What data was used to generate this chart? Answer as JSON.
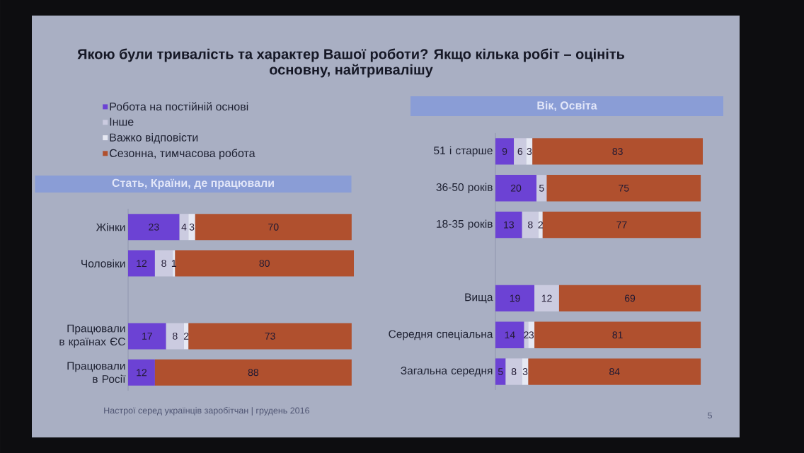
{
  "chart_data": [
    {
      "type": "bar",
      "orientation": "horizontal",
      "stacked": true,
      "title": "Якою були тривалість та характер Вашої роботи? Якщо кілька робіт – оцініть основну, найтривалішу",
      "subtitle": "Стать, Країни, де працювали",
      "categories": [
        "Жінки",
        "Чоловіки",
        null,
        "Працювали в країнах ЄС",
        "Працювали в Росії"
      ],
      "series": [
        {
          "name": "Робота на постійній основі",
          "color": "#6c42d4",
          "values": [
            23,
            12,
            null,
            17,
            12
          ]
        },
        {
          "name": "Інше",
          "color": "#cbcbe0",
          "values": [
            4,
            8,
            null,
            8,
            null
          ]
        },
        {
          "name": "Важко відповісти",
          "color": "#e6e8f3",
          "values": [
            3,
            1,
            null,
            2,
            null
          ]
        },
        {
          "name": "Сезонна, тимчасова робота",
          "color": "#b0502e",
          "values": [
            70,
            80,
            null,
            73,
            88
          ]
        }
      ],
      "xlim": [
        0,
        101
      ],
      "tick_labels": "y",
      "data_labels": true,
      "legend": "top left",
      "annotations": [
        "Настрої серед українців заробітчан | грудень 2016"
      ]
    },
    {
      "type": "bar",
      "orientation": "horizontal",
      "stacked": true,
      "title": "Вік, Освіта",
      "categories": [
        "51 і старше",
        "36-50 років",
        "18-35 років",
        null,
        "Вища",
        "Середня спеціальна",
        "Загальна середня"
      ],
      "series": [
        {
          "color": "#6c42d4",
          "values": [
            9,
            20,
            13,
            null,
            19,
            14,
            5
          ]
        },
        {
          "color": "#cbcbe0",
          "values": [
            6,
            5,
            8,
            null,
            12,
            2,
            8
          ]
        },
        {
          "color": "#e6e8f3",
          "values": [
            3,
            null,
            2,
            null,
            null,
            3,
            3
          ]
        },
        {
          "color": "#b0502e",
          "values": [
            83,
            75,
            77,
            null,
            69,
            81,
            84
          ]
        }
      ],
      "xlim": [
        0,
        101
      ],
      "tick_labels": "y",
      "data_labels": true,
      "annotations": [
        "5"
      ]
    }
  ]
}
